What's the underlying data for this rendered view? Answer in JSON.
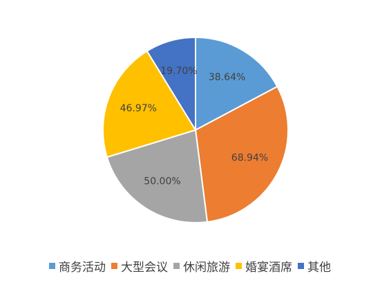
{
  "chart_data": {
    "type": "pie",
    "categories": [
      "商务活动",
      "大型会议",
      "休闲旅游",
      "婚宴酒席",
      "其他"
    ],
    "values": [
      38.64,
      68.94,
      50.0,
      46.97,
      19.7
    ],
    "labels": [
      "38.64%",
      "68.94%",
      "50.00%",
      "46.97%",
      "19.70%"
    ],
    "colors": [
      "#5B9BD5",
      "#ED7D31",
      "#A5A5A5",
      "#FFC000",
      "#4472C4"
    ],
    "legend_position": "bottom"
  }
}
